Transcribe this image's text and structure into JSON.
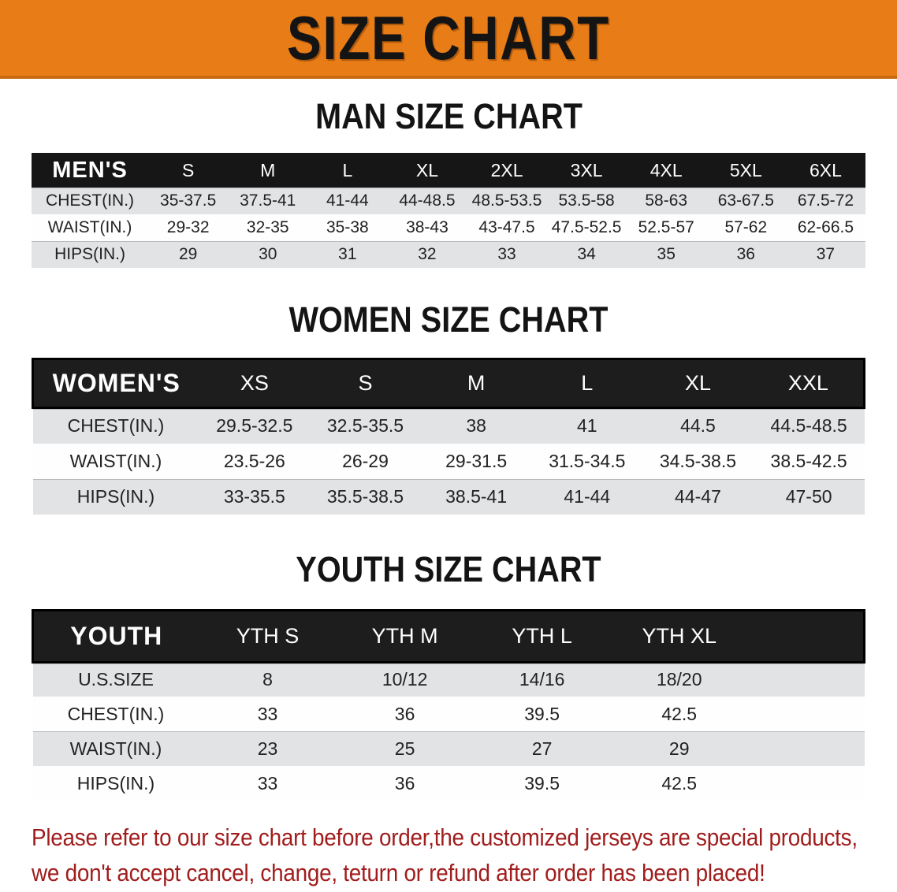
{
  "banner": {
    "title": "SIZE CHART",
    "bg_color": "#e87d18",
    "text_color": "#141414"
  },
  "colors": {
    "table_header_bg": "#161616",
    "shaded_row": "#e2e3e5",
    "disclaimer_text": "#a11d1d"
  },
  "sections": [
    {
      "heading": "MAN SIZE CHART",
      "table": {
        "header_label": "MEN'S",
        "columns": [
          "S",
          "M",
          "L",
          "XL",
          "2XL",
          "3XL",
          "4XL",
          "5XL",
          "6XL"
        ],
        "rows": [
          {
            "label": "CHEST(IN.)",
            "values": [
              "35-37.5",
              "37.5-41",
              "41-44",
              "44-48.5",
              "48.5-53.5",
              "53.5-58",
              "58-63",
              "63-67.5",
              "67.5-72"
            ]
          },
          {
            "label": "WAIST(IN.)",
            "values": [
              "29-32",
              "32-35",
              "35-38",
              "38-43",
              "43-47.5",
              "47.5-52.5",
              "52.5-57",
              "57-62",
              "62-66.5"
            ]
          },
          {
            "label": "HIPS(IN.)",
            "values": [
              "29",
              "30",
              "31",
              "32",
              "33",
              "34",
              "35",
              "36",
              "37"
            ]
          }
        ]
      }
    },
    {
      "heading": "WOMEN SIZE CHART",
      "table": {
        "header_label": "WOMEN'S",
        "columns": [
          "XS",
          "S",
          "M",
          "L",
          "XL",
          "XXL"
        ],
        "rows": [
          {
            "label": "CHEST(IN.)",
            "values": [
              "29.5-32.5",
              "32.5-35.5",
              "38",
              "41",
              "44.5",
              "44.5-48.5"
            ]
          },
          {
            "label": "WAIST(IN.)",
            "values": [
              "23.5-26",
              "26-29",
              "29-31.5",
              "31.5-34.5",
              "34.5-38.5",
              "38.5-42.5"
            ]
          },
          {
            "label": "HIPS(IN.)",
            "values": [
              "33-35.5",
              "35.5-38.5",
              "38.5-41",
              "41-44",
              "44-47",
              "47-50"
            ]
          }
        ]
      }
    },
    {
      "heading": "YOUTH SIZE CHART",
      "table": {
        "header_label": "YOUTH",
        "columns": [
          "YTH S",
          "YTH M",
          "YTH L",
          "YTH XL"
        ],
        "rows": [
          {
            "label": "U.S.SIZE",
            "values": [
              "8",
              "10/12",
              "14/16",
              "18/20"
            ]
          },
          {
            "label": "CHEST(IN.)",
            "values": [
              "33",
              "36",
              "39.5",
              "42.5"
            ]
          },
          {
            "label": "WAIST(IN.)",
            "values": [
              "23",
              "25",
              "27",
              "29"
            ]
          },
          {
            "label": "HIPS(IN.)",
            "values": [
              "33",
              "36",
              "39.5",
              "42.5"
            ]
          }
        ]
      }
    }
  ],
  "disclaimer": {
    "line1": "Please refer to our size chart before order,the customized jerseys are special products,",
    "line2": "we don't accept cancel, change, teturn or refund after order has been placed!"
  }
}
